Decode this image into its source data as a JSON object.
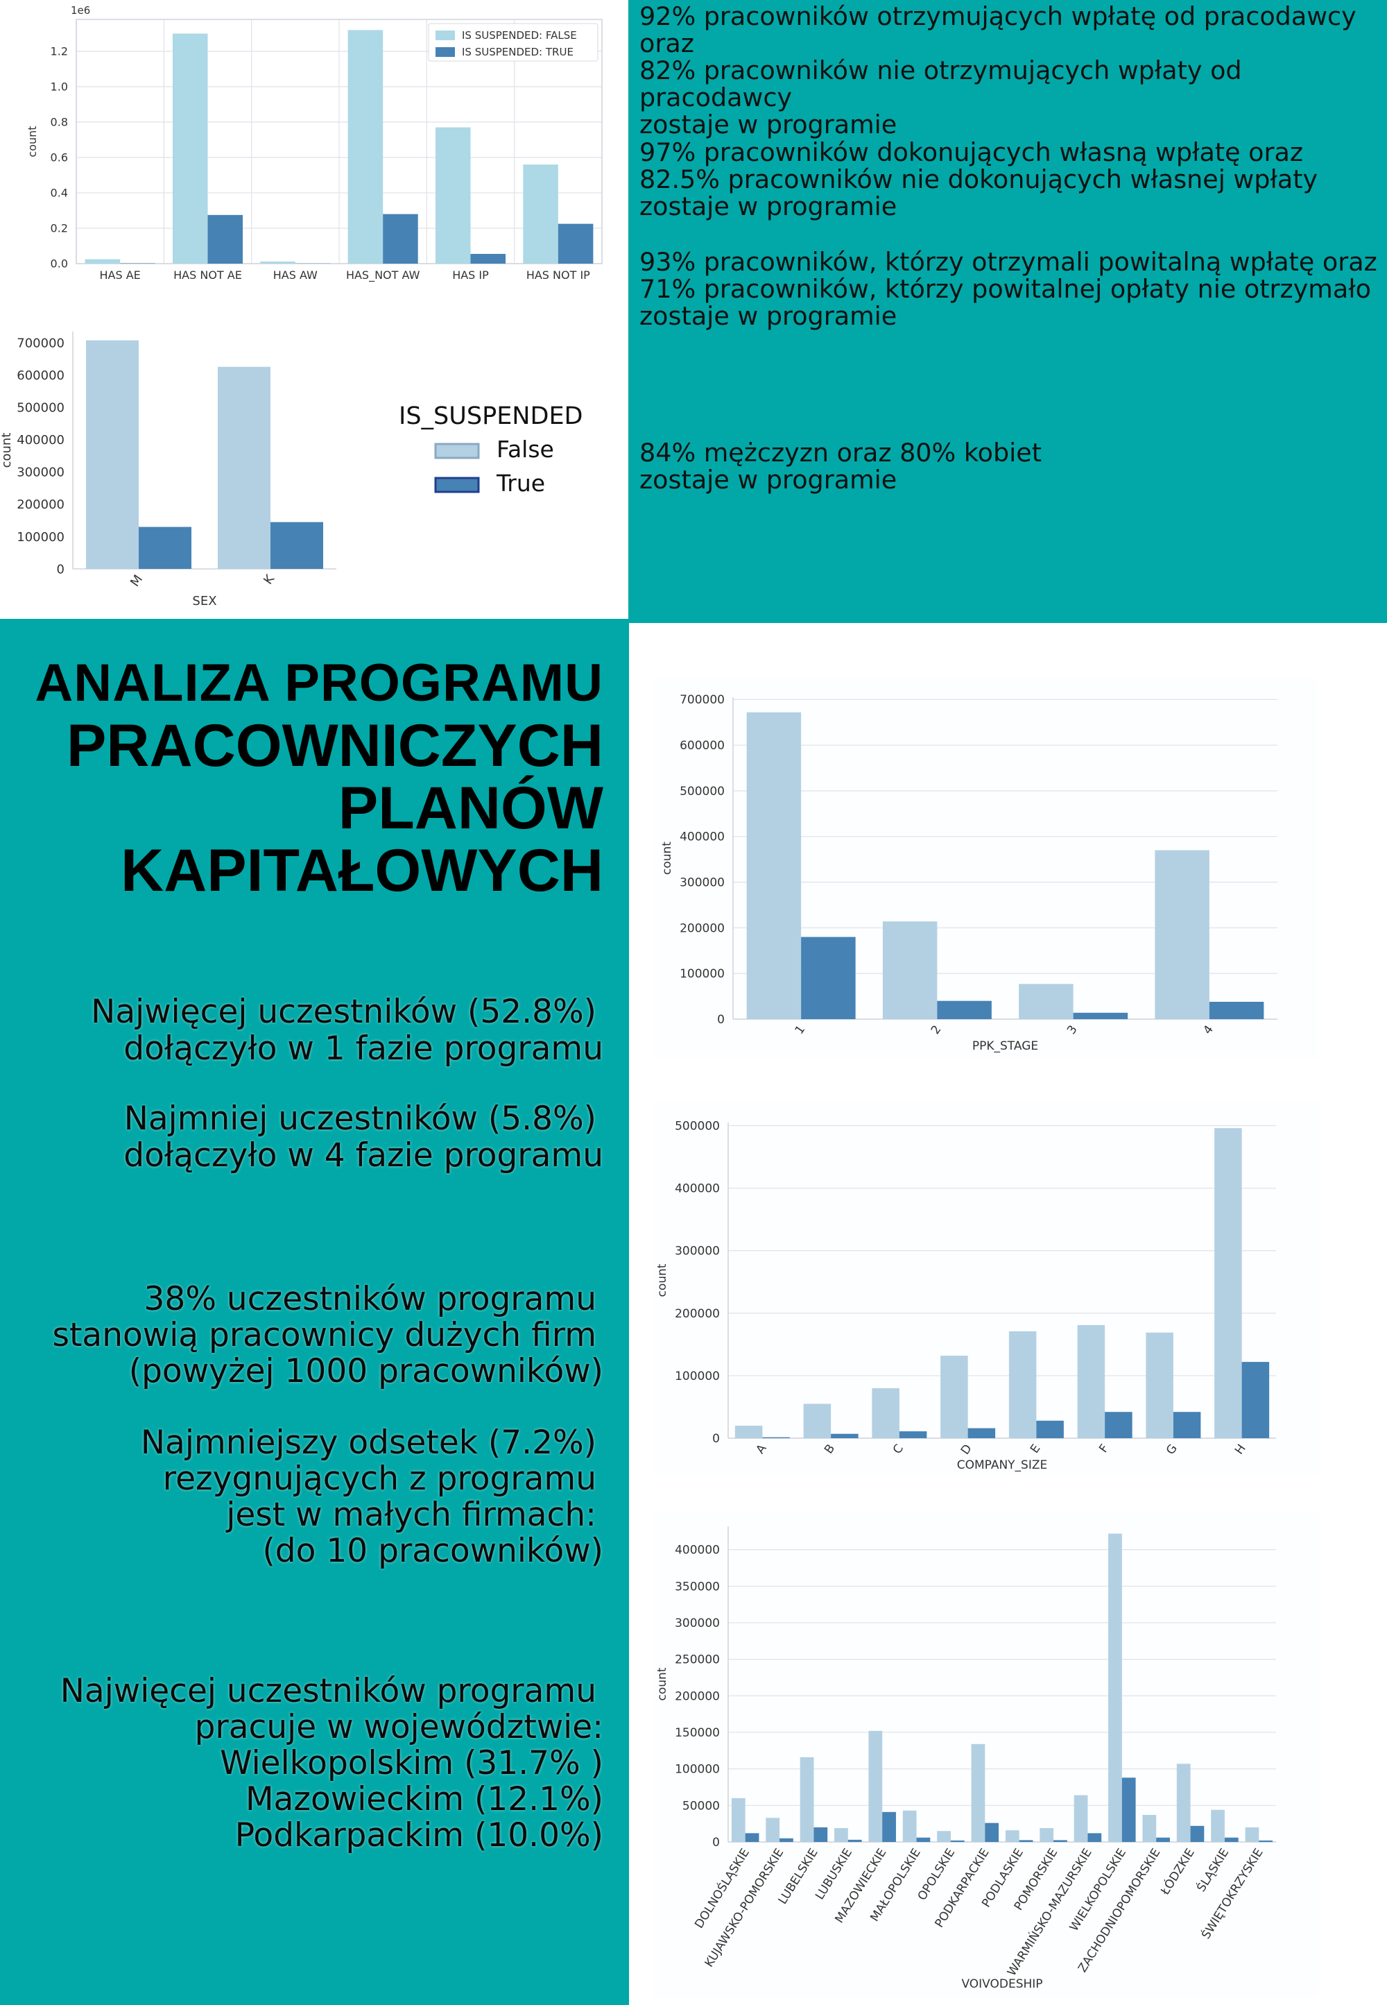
{
  "colors": {
    "teal": "#02A8A8",
    "light": "#b3d0e3",
    "light2": "#add8e6",
    "dark": "#4682b4",
    "grid": "#e2e4ea",
    "axis": "#cfd3db"
  },
  "title": {
    "line1": "ANALIZA  PROGRAMU",
    "line2": "PRACOWNICZYCH",
    "line3": "PLANÓW",
    "line4": "KAPITAŁOWYCH"
  },
  "info": {
    "b1": [
      "Najwięcej uczestników (52.8%)",
      "dołączyło w 1 fazie programu"
    ],
    "b2": [
      "Najmniej uczestników (5.8%)",
      "dołączyło w 4 fazie programu"
    ],
    "b3": [
      "38% uczestników programu",
      "stanowią pracownicy  dużych firm",
      "(powyżej 1000 pracowników)"
    ],
    "b4": [
      "Najmniejszy odsetek (7.2%)",
      "rezygnujących z programu",
      "jest w małych firmach:",
      "(do 10 pracowników)"
    ],
    "b5": [
      "Najwięcej uczestników programu",
      "pracuje w województwie:",
      "Wielkopolskim (31.7% )",
      "Mazowieckim (12.1%)",
      "Podkarpackim (10.0%)"
    ]
  },
  "stats": {
    "s1": [
      "92% pracowników otrzymujących wpłatę od pracodawcy",
      "oraz",
      "82% pracowników nie otrzymujących wpłaty od pracodawcy",
      "zostaje w programie"
    ],
    "s2": [
      "97% pracowników dokonujących własną wpłatę oraz",
      "82.5% pracowników nie dokonujących własnej wpłaty",
      "zostaje w programie"
    ],
    "s3": [
      "93% pracowników, którzy otrzymali  powitalną wpłatę oraz",
      "71% pracowników, którzy powitalnej opłaty nie otrzymało",
      "zostaje w programie"
    ],
    "s4": [
      "84% mężczyzn oraz 80% kobiet",
      "zostaje w programie"
    ]
  },
  "chart_data": [
    {
      "type": "bar",
      "xlabel": "",
      "ylabel": "count",
      "offset_label": "1e6",
      "categories": [
        "HAS AE",
        "HAS NOT AE",
        "HAS AW",
        "HAS_NOT AW",
        "HAS IP",
        "HAS NOT IP"
      ],
      "yticks": [
        "0.0",
        "0.2",
        "0.4",
        "0.6",
        "0.8",
        "1.0",
        "1.2"
      ],
      "ylim": [
        0,
        1.38
      ],
      "legend_position": "upper right",
      "series": [
        {
          "name": "IS SUSPENDED: FALSE",
          "values": [
            0.025,
            1.3,
            0.012,
            1.32,
            0.77,
            0.56
          ]
        },
        {
          "name": "IS SUSPENDED: TRUE",
          "values": [
            0.002,
            0.275,
            0.001,
            0.28,
            0.055,
            0.225
          ]
        }
      ]
    },
    {
      "type": "bar",
      "xlabel": "SEX",
      "ylabel": "count",
      "categories": [
        "M",
        "K"
      ],
      "yticks": [
        "0",
        "100000",
        "200000",
        "300000",
        "400000",
        "500000",
        "600000",
        "700000"
      ],
      "ylim": [
        0,
        735000
      ],
      "legend_title": "IS_SUSPENDED",
      "legend_position": "right",
      "series": [
        {
          "name": "False",
          "values": [
            708000,
            626000
          ]
        },
        {
          "name": "True",
          "values": [
            130000,
            145000
          ]
        }
      ]
    },
    {
      "type": "bar",
      "xlabel": "PPK_STAGE",
      "ylabel": "count",
      "categories": [
        "1",
        "2",
        "3",
        "4"
      ],
      "yticks": [
        "0",
        "100000",
        "200000",
        "300000",
        "400000",
        "500000",
        "600000",
        "700000"
      ],
      "ylim": [
        0,
        705000
      ],
      "series": [
        {
          "values": [
            672000,
            214000,
            77000,
            370000
          ]
        },
        {
          "values": [
            180000,
            40000,
            14000,
            38000
          ]
        }
      ]
    },
    {
      "type": "bar",
      "xlabel": "COMPANY_SIZE",
      "ylabel": "count",
      "categories": [
        "A",
        "B",
        "C",
        "D",
        "E",
        "F",
        "G",
        "H"
      ],
      "yticks": [
        "0",
        "100000",
        "200000",
        "300000",
        "400000",
        "500000"
      ],
      "ylim": [
        0,
        505000
      ],
      "series": [
        {
          "values": [
            20000,
            55000,
            80000,
            132000,
            171000,
            181000,
            169000,
            496000
          ]
        },
        {
          "values": [
            1500,
            7000,
            11000,
            16000,
            28000,
            42000,
            42000,
            122000
          ]
        }
      ]
    },
    {
      "type": "bar",
      "xlabel": "VOIVODESHIP",
      "ylabel": "count",
      "categories": [
        "DOLNOŚLĄSKIE",
        "KUJAWSKO-POMORSKIE",
        "LUBELSKIE",
        "LUBUSKIE",
        "MAZOWIECKIE",
        "MAŁOPOLSKIE",
        "OPOLSKIE",
        "PODKARPACKIE",
        "PODLASKIE",
        "POMORSKIE",
        "WARMIŃSKO-MAZURSKIE",
        "WIELKOPOLSKIE",
        "ZACHODNIOPOMORSKIE",
        "ŁÓDZKIE",
        "ŚLĄSKIE",
        "ŚWIĘTOKRZYSKIE"
      ],
      "yticks": [
        "0",
        "50000",
        "100000",
        "150000",
        "200000",
        "250000",
        "300000",
        "350000",
        "400000"
      ],
      "ylim": [
        0,
        432000
      ],
      "series": [
        {
          "values": [
            60000,
            33000,
            116000,
            19000,
            152000,
            43000,
            15000,
            134000,
            16000,
            19000,
            64000,
            422000,
            37000,
            107000,
            44000,
            20000
          ]
        },
        {
          "values": [
            12000,
            5000,
            20000,
            3000,
            41000,
            6000,
            2000,
            26000,
            2500,
            2500,
            12000,
            88000,
            6000,
            22000,
            6000,
            2000
          ]
        }
      ]
    }
  ]
}
